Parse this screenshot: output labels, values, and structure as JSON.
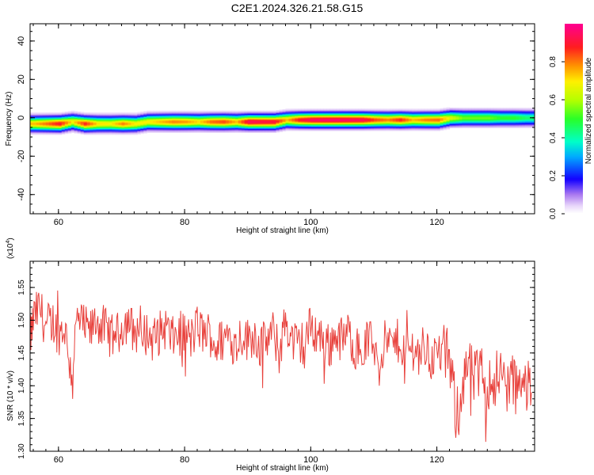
{
  "page_title": "C2E1.2024.326.21.58.G15",
  "chart_data": [
    {
      "type": "heatmap",
      "xlabel": "Height of straight line (km)",
      "ylabel": "Frequency (Hz)",
      "xlim": [
        55.5,
        135.5
      ],
      "ylim": [
        -50,
        49
      ],
      "xticks": [
        60,
        80,
        100,
        120
      ],
      "yticks": [
        -40,
        -20,
        0,
        20,
        40
      ],
      "colorbar": {
        "label": "Normalized spectral amplitude",
        "ticks": [
          0.0,
          0.2,
          0.4,
          0.6,
          0.8
        ],
        "tick_labels": [
          "0.0",
          "0.2",
          "0.4",
          "0.6",
          "0.8"
        ],
        "range": [
          0,
          1
        ]
      },
      "band": {
        "center_x": [
          56,
          58,
          60,
          62,
          64,
          66,
          68,
          70,
          72,
          74,
          76,
          78,
          80,
          82,
          84,
          86,
          88,
          90,
          92,
          94,
          96,
          98,
          100,
          102,
          104,
          106,
          108,
          110,
          112,
          114,
          116,
          118,
          120,
          122,
          124,
          126,
          128,
          130,
          132,
          134
        ],
        "center_freq_hz": [
          -3,
          -3,
          -3,
          -2,
          -3,
          -3,
          -3,
          -3,
          -3,
          -2,
          -2,
          -2,
          -2,
          -2,
          -2,
          -2,
          -2,
          -2,
          -2,
          -2,
          -1,
          -1,
          -1,
          -1,
          -1,
          -1,
          -1,
          -1,
          -1,
          -1,
          -1,
          -1,
          -1,
          0,
          0,
          0,
          0,
          0,
          0,
          0
        ],
        "peak_amplitude": [
          0.75,
          0.82,
          0.9,
          0.7,
          0.88,
          0.72,
          0.7,
          0.8,
          0.7,
          0.7,
          0.75,
          0.8,
          0.78,
          0.72,
          0.82,
          0.85,
          0.75,
          0.95,
          0.93,
          0.92,
          0.75,
          0.9,
          0.96,
          0.97,
          0.97,
          0.96,
          0.95,
          0.85,
          0.8,
          0.88,
          0.75,
          0.8,
          0.82,
          0.65,
          0.55,
          0.55,
          0.55,
          0.5,
          0.5,
          0.45
        ]
      }
    },
    {
      "type": "line",
      "xlabel": "Height of straight line (km)",
      "ylabel": "SNR (10 * v/v)",
      "y_multiplier_label": "(x10",
      "y_multiplier_exp": "4",
      "y_multiplier_close": ")",
      "xlim": [
        55.5,
        135.5
      ],
      "ylim": [
        1.3,
        1.59
      ],
      "xticks": [
        60,
        80,
        100,
        120
      ],
      "yticks": [
        1.3,
        1.35,
        1.4,
        1.45,
        1.5,
        1.55
      ],
      "ytick_labels": [
        "1.30",
        "1.35",
        "1.40",
        "1.45",
        "1.50",
        "1.55"
      ],
      "series": [
        {
          "color": "#e8413c",
          "x": [
            55.5,
            56,
            57,
            58,
            59,
            60,
            61,
            62,
            63,
            64,
            65,
            66,
            67,
            68,
            69,
            70,
            71,
            72,
            73,
            74,
            75,
            76,
            77,
            78,
            79,
            80,
            81,
            82,
            83,
            84,
            85,
            86,
            87,
            88,
            89,
            90,
            91,
            92,
            93,
            94,
            95,
            96,
            97,
            98,
            99,
            100,
            101,
            102,
            103,
            104,
            105,
            106,
            107,
            108,
            109,
            110,
            111,
            112,
            113,
            114,
            115,
            116,
            117,
            118,
            119,
            120,
            121,
            122,
            123,
            124,
            125,
            126,
            127,
            128,
            129,
            130,
            131,
            132,
            133,
            134,
            135
          ],
          "y": [
            1.47,
            1.5,
            1.52,
            1.49,
            1.5,
            1.48,
            1.49,
            1.42,
            1.5,
            1.49,
            1.48,
            1.5,
            1.49,
            1.48,
            1.47,
            1.49,
            1.5,
            1.48,
            1.49,
            1.48,
            1.47,
            1.48,
            1.49,
            1.47,
            1.48,
            1.48,
            1.47,
            1.49,
            1.48,
            1.48,
            1.46,
            1.47,
            1.48,
            1.46,
            1.48,
            1.47,
            1.48,
            1.46,
            1.47,
            1.48,
            1.45,
            1.5,
            1.47,
            1.46,
            1.47,
            1.49,
            1.48,
            1.47,
            1.46,
            1.48,
            1.47,
            1.48,
            1.46,
            1.45,
            1.47,
            1.46,
            1.45,
            1.47,
            1.46,
            1.47,
            1.45,
            1.46,
            1.45,
            1.46,
            1.44,
            1.45,
            1.45,
            1.44,
            1.36,
            1.4,
            1.43,
            1.41,
            1.42,
            1.4,
            1.41,
            1.42,
            1.4,
            1.41,
            1.39,
            1.4,
            1.39
          ]
        }
      ]
    }
  ]
}
